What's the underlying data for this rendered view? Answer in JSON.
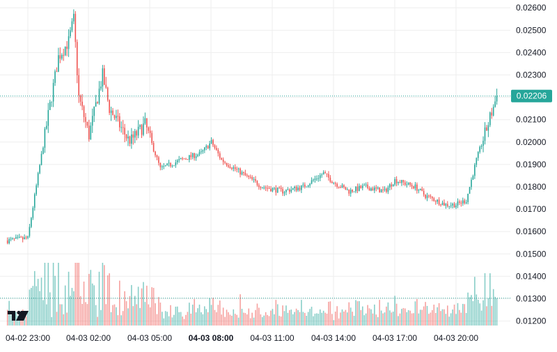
{
  "chart_data": {
    "type": "candlestick",
    "title": "",
    "grid": true,
    "colors": {
      "up": "#26a69a",
      "down": "#ef5350",
      "price_line": "#26a69a",
      "grid": "#eeeeee",
      "axis_text": "#131722",
      "background": "#ffffff"
    },
    "y_axis": {
      "range": [
        0.0118,
        0.02635
      ],
      "ticks": [
        "0.02600",
        "0.02500",
        "0.02400",
        "0.02300",
        "0.02200",
        "0.02100",
        "0.02000",
        "0.01900",
        "0.01800",
        "0.01700",
        "0.01600",
        "0.01500",
        "0.01400",
        "0.01300",
        "0.01200"
      ]
    },
    "x_axis": {
      "ticks": [
        "04-02 23:00",
        "04-03 02:00",
        "04-03 05:00",
        "04-03 08:00",
        "04-03 11:00",
        "04-03 14:00",
        "04-03 17:00",
        "04-03 20:00"
      ],
      "bold_tick": "04-03 08:00"
    },
    "last_price": "0.02206",
    "candle_interval_minutes": 5,
    "ohlc": [],
    "key_points": [
      {
        "time": "04-02 22:00",
        "close": 0.0156
      },
      {
        "time": "04-02 23:00",
        "close": 0.0157
      },
      {
        "time": "04-02 23:30",
        "close": 0.0185
      },
      {
        "time": "04-03 00:00",
        "close": 0.0212
      },
      {
        "time": "04-03 00:30",
        "close": 0.0238
      },
      {
        "time": "04-03 01:00",
        "close": 0.0245
      },
      {
        "time": "04-03 01:15",
        "close": 0.0255
      },
      {
        "time": "04-03 01:30",
        "close": 0.022
      },
      {
        "time": "04-03 02:00",
        "close": 0.0203
      },
      {
        "time": "04-03 02:40",
        "close": 0.023
      },
      {
        "time": "04-03 03:00",
        "close": 0.0215
      },
      {
        "time": "04-03 04:00",
        "close": 0.02
      },
      {
        "time": "04-03 04:45",
        "close": 0.0208
      },
      {
        "time": "04-03 05:30",
        "close": 0.0188
      },
      {
        "time": "04-03 06:30",
        "close": 0.0192
      },
      {
        "time": "04-03 07:30",
        "close": 0.0195
      },
      {
        "time": "04-03 08:00",
        "close": 0.02
      },
      {
        "time": "04-03 08:30",
        "close": 0.0192
      },
      {
        "time": "04-03 09:30",
        "close": 0.0186
      },
      {
        "time": "04-03 10:30",
        "close": 0.018
      },
      {
        "time": "04-03 11:30",
        "close": 0.0178
      },
      {
        "time": "04-03 12:30",
        "close": 0.018
      },
      {
        "time": "04-03 13:30",
        "close": 0.0186
      },
      {
        "time": "04-03 14:00",
        "close": 0.0182
      },
      {
        "time": "04-03 14:45",
        "close": 0.0178
      },
      {
        "time": "04-03 15:30",
        "close": 0.018
      },
      {
        "time": "04-03 16:30",
        "close": 0.0178
      },
      {
        "time": "04-03 17:00",
        "close": 0.0183
      },
      {
        "time": "04-03 18:00",
        "close": 0.018
      },
      {
        "time": "04-03 18:30",
        "close": 0.0176
      },
      {
        "time": "04-03 19:30",
        "close": 0.0172
      },
      {
        "time": "04-03 20:00",
        "close": 0.0172
      },
      {
        "time": "04-03 20:30",
        "close": 0.0174
      },
      {
        "time": "04-03 21:00",
        "close": 0.0192
      },
      {
        "time": "04-03 21:30",
        "close": 0.0206
      },
      {
        "time": "04-03 22:00",
        "close": 0.02206
      }
    ],
    "volume": {
      "shown": true,
      "relative_scale": true
    }
  },
  "logo": {
    "icon": "tradingview-logo-icon",
    "text": "TV"
  }
}
